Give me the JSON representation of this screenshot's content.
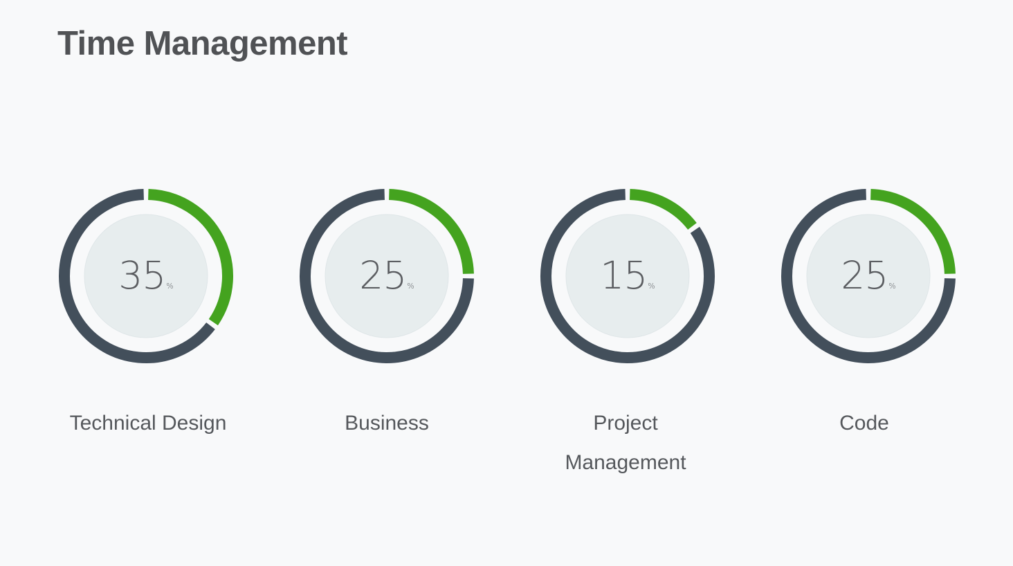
{
  "title": "Time Management",
  "colors": {
    "background": "#f8f9fa",
    "progress": "#44a31f",
    "track": "#434f5b",
    "inner_fill": "#e7edee",
    "text": "#505255"
  },
  "chart_data": {
    "type": "pie",
    "unit": "%",
    "max": 100,
    "items": [
      {
        "label": "Technical Design",
        "value": 35,
        "unit": "%"
      },
      {
        "label": "Business",
        "value": 25,
        "unit": "%"
      },
      {
        "label": "Project Management",
        "value": 15,
        "unit": "%"
      },
      {
        "label": "Code",
        "value": 25,
        "unit": "%"
      }
    ]
  }
}
